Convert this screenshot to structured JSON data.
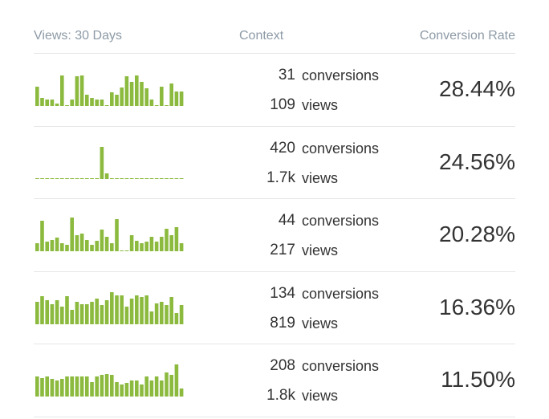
{
  "table": {
    "headers": [
      "Views: 30 Days",
      "Context",
      "Conversion Rate"
    ],
    "rows": [
      {
        "views_30_days": [
          24,
          10,
          8,
          8,
          3,
          38,
          0,
          8,
          37,
          38,
          14,
          10,
          8,
          8,
          0,
          17,
          14,
          23,
          37,
          30,
          38,
          30,
          22,
          8,
          0,
          24,
          0,
          28,
          18,
          18
        ],
        "conversions": "31",
        "conversions_label": "conversions",
        "views": "109",
        "views_label": "views",
        "rate": "28.44%"
      },
      {
        "views_30_days": [
          1,
          1,
          1,
          1,
          1,
          1,
          1,
          1,
          1,
          1,
          1,
          1,
          1,
          40,
          7,
          1,
          1,
          1,
          1,
          1,
          1,
          1,
          1,
          1,
          1,
          1,
          1,
          1,
          1,
          1
        ],
        "conversions": "420",
        "conversions_label": "conversions",
        "views": "1.7k",
        "views_label": "views",
        "rate": "24.56%"
      },
      {
        "views_30_days": [
          10,
          38,
          12,
          14,
          17,
          10,
          8,
          42,
          20,
          22,
          14,
          8,
          13,
          27,
          18,
          10,
          40,
          0,
          1,
          20,
          13,
          10,
          12,
          18,
          12,
          18,
          28,
          20,
          30,
          10
        ],
        "conversions": "44",
        "conversions_label": "conversions",
        "views": "217",
        "views_label": "views",
        "rate": "20.28%"
      },
      {
        "views_30_days": [
          28,
          35,
          30,
          25,
          30,
          22,
          35,
          18,
          28,
          25,
          25,
          28,
          32,
          24,
          30,
          40,
          36,
          36,
          22,
          32,
          36,
          34,
          36,
          16,
          26,
          28,
          24,
          34,
          14,
          24
        ],
        "conversions": "134",
        "conversions_label": "conversions",
        "views": "819",
        "views_label": "views",
        "rate": "16.36%"
      },
      {
        "views_30_days": [
          25,
          23,
          25,
          22,
          20,
          22,
          25,
          25,
          25,
          25,
          25,
          18,
          25,
          27,
          28,
          27,
          18,
          15,
          17,
          20,
          20,
          15,
          25,
          20,
          25,
          20,
          30,
          27,
          40,
          10
        ],
        "conversions": "208",
        "conversions_label": "conversions",
        "views": "1.8k",
        "views_label": "views",
        "rate": "11.50%"
      }
    ]
  }
}
